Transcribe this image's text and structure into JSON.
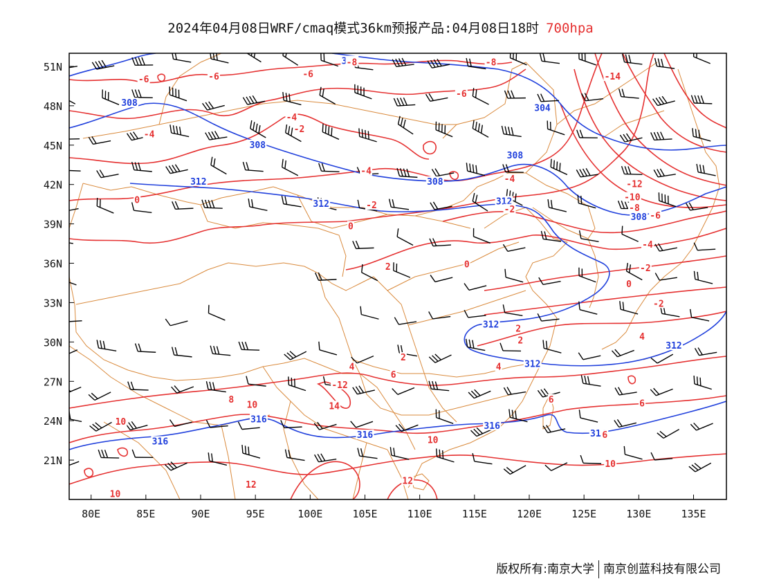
{
  "header": {
    "title_main": "2024年04月08日WRF/cmaq模式36km预报产品:04月08日18时",
    "title_level": "700hpa"
  },
  "footer": {
    "owner": "版权所有:南京大学",
    "company": "南京创蓝科技有限公司"
  },
  "axes": {
    "lat_labels": [
      "51N",
      "48N",
      "45N",
      "42N",
      "39N",
      "36N",
      "33N",
      "30N",
      "27N",
      "24N",
      "21N"
    ],
    "lon_labels": [
      "80E",
      "85E",
      "90E",
      "95E",
      "100E",
      "105E",
      "110E",
      "115E",
      "120E",
      "125E",
      "130E",
      "135E"
    ]
  },
  "colors": {
    "temperature": "#e53030",
    "geopotential": "#1f3fdc",
    "boundary": "#d9893b",
    "wind": "#000000",
    "frame": "#000000"
  },
  "geopotential_labels": [
    {
      "text": "304",
      "lon": 103.6,
      "lat": 51.4
    },
    {
      "text": "308",
      "lon": 83.5,
      "lat": 48.2
    },
    {
      "text": "304",
      "lon": 121.2,
      "lat": 47.8
    },
    {
      "text": "308",
      "lon": 95.2,
      "lat": 45.0
    },
    {
      "text": "308",
      "lon": 118.7,
      "lat": 44.2
    },
    {
      "text": "312",
      "lon": 89.8,
      "lat": 42.2
    },
    {
      "text": "308",
      "lon": 111.4,
      "lat": 42.2
    },
    {
      "text": "312",
      "lon": 101.0,
      "lat": 40.5
    },
    {
      "text": "312",
      "lon": 117.7,
      "lat": 40.7
    },
    {
      "text": "308",
      "lon": 130.0,
      "lat": 39.5
    },
    {
      "text": "312",
      "lon": 116.5,
      "lat": 31.3
    },
    {
      "text": "312",
      "lon": 120.3,
      "lat": 28.3
    },
    {
      "text": "312",
      "lon": 133.2,
      "lat": 29.7
    },
    {
      "text": "316",
      "lon": 95.3,
      "lat": 24.1
    },
    {
      "text": "316",
      "lon": 86.3,
      "lat": 22.4
    },
    {
      "text": "316",
      "lon": 105.0,
      "lat": 22.9
    },
    {
      "text": "316",
      "lon": 116.6,
      "lat": 23.6
    },
    {
      "text": "316",
      "lon": 126.3,
      "lat": 23.0
    }
  ],
  "temperature_labels": [
    {
      "text": "-8",
      "lon": 103.8,
      "lat": 51.3
    },
    {
      "text": "-8",
      "lon": 116.5,
      "lat": 51.3
    },
    {
      "text": "-6",
      "lon": 84.8,
      "lat": 50.0
    },
    {
      "text": "-6",
      "lon": 91.2,
      "lat": 50.2
    },
    {
      "text": "-6",
      "lon": 99.8,
      "lat": 50.4
    },
    {
      "text": "-14",
      "lon": 127.6,
      "lat": 50.2
    },
    {
      "text": "-6",
      "lon": 113.8,
      "lat": 48.9
    },
    {
      "text": "-4",
      "lon": 98.3,
      "lat": 47.1
    },
    {
      "text": "-2",
      "lon": 99.0,
      "lat": 46.2
    },
    {
      "text": "-4",
      "lon": 85.3,
      "lat": 45.8
    },
    {
      "text": "-4",
      "lon": 105.1,
      "lat": 43.0
    },
    {
      "text": "-4",
      "lon": 118.2,
      "lat": 42.4
    },
    {
      "text": "-12",
      "lon": 129.6,
      "lat": 42.0
    },
    {
      "text": "-10",
      "lon": 129.4,
      "lat": 41.0
    },
    {
      "text": "0",
      "lon": 84.2,
      "lat": 40.8
    },
    {
      "text": "-8",
      "lon": 129.6,
      "lat": 40.2
    },
    {
      "text": "-2",
      "lon": 105.6,
      "lat": 40.4
    },
    {
      "text": "-2",
      "lon": 118.2,
      "lat": 40.1
    },
    {
      "text": "-6",
      "lon": 131.5,
      "lat": 39.6
    },
    {
      "text": "0",
      "lon": 103.7,
      "lat": 38.8
    },
    {
      "text": "-4",
      "lon": 130.8,
      "lat": 37.4
    },
    {
      "text": "0",
      "lon": 114.3,
      "lat": 35.9
    },
    {
      "text": "2",
      "lon": 107.1,
      "lat": 35.7
    },
    {
      "text": "-2",
      "lon": 130.6,
      "lat": 35.6
    },
    {
      "text": "0",
      "lon": 129.1,
      "lat": 34.4
    },
    {
      "text": "-2",
      "lon": 131.8,
      "lat": 32.9
    },
    {
      "text": "2",
      "lon": 119.0,
      "lat": 31.0
    },
    {
      "text": "4",
      "lon": 130.3,
      "lat": 30.4
    },
    {
      "text": "2",
      "lon": 119.2,
      "lat": 30.1
    },
    {
      "text": "2",
      "lon": 108.5,
      "lat": 28.8
    },
    {
      "text": "4",
      "lon": 103.8,
      "lat": 28.1
    },
    {
      "text": "6",
      "lon": 107.6,
      "lat": 27.5
    },
    {
      "text": "4",
      "lon": 117.2,
      "lat": 28.1
    },
    {
      "text": "-12",
      "lon": 102.7,
      "lat": 26.7
    },
    {
      "text": "8",
      "lon": 92.8,
      "lat": 25.6
    },
    {
      "text": "10",
      "lon": 94.7,
      "lat": 25.2
    },
    {
      "text": "14",
      "lon": 102.2,
      "lat": 25.1
    },
    {
      "text": "6",
      "lon": 122.0,
      "lat": 25.6
    },
    {
      "text": "6",
      "lon": 130.3,
      "lat": 25.3
    },
    {
      "text": "10",
      "lon": 82.7,
      "lat": 23.9
    },
    {
      "text": "10",
      "lon": 111.2,
      "lat": 22.5
    },
    {
      "text": "6",
      "lon": 126.9,
      "lat": 22.9
    },
    {
      "text": "10",
      "lon": 127.4,
      "lat": 20.7
    },
    {
      "text": "12",
      "lon": 94.6,
      "lat": 19.1
    },
    {
      "text": "12",
      "lon": 108.9,
      "lat": 19.4
    },
    {
      "text": "10",
      "lon": 82.2,
      "lat": 18.4
    }
  ]
}
